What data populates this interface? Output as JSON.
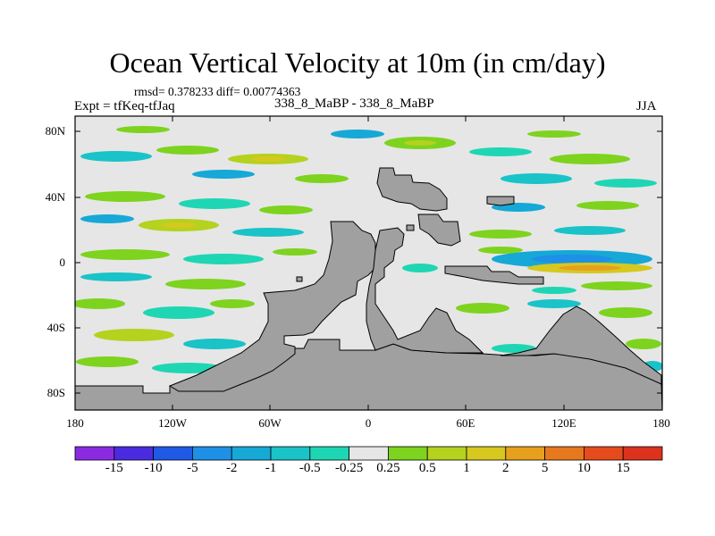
{
  "header": {
    "title": "Ocean Vertical Velocity at 10m (in cm/day)",
    "stats": "rmsd= 0.378233 diff= 0.00774363",
    "expt": "Expt = tfKeq-tfJaq",
    "cases": "338_8_MaBP - 338_8_MaBP",
    "season": "JJA"
  },
  "axes": {
    "lat_ticks": [
      "80N",
      "40N",
      "0",
      "40S",
      "80S"
    ],
    "lat_values": [
      80,
      40,
      0,
      -40,
      -80
    ],
    "lon_ticks": [
      "180",
      "120W",
      "60W",
      "0",
      "60E",
      "120E",
      "180"
    ],
    "lon_values": [
      -180,
      -120,
      -60,
      0,
      60,
      120,
      180
    ],
    "lon_range": [
      -180,
      180
    ],
    "lat_range": [
      -90,
      90
    ]
  },
  "colorbar": {
    "labels": [
      "-15",
      "-10",
      "-5",
      "-2",
      "-1",
      "-0.5",
      "-0.25",
      "0.25",
      "0.5",
      "1",
      "2",
      "5",
      "10",
      "15"
    ],
    "colors": [
      "#8a2be2",
      "#4b2be0",
      "#1e5ae6",
      "#1e90e6",
      "#16a8d6",
      "#19c3c8",
      "#1ed6b4",
      "#e6e6e6",
      "#7dd31e",
      "#b4d21e",
      "#d6c81e",
      "#e6a01e",
      "#e6781e",
      "#e64b1e",
      "#dc321e"
    ]
  },
  "legend_colors": {
    "land": "#a0a0a0",
    "near_zero": "#e6e6e6"
  }
}
